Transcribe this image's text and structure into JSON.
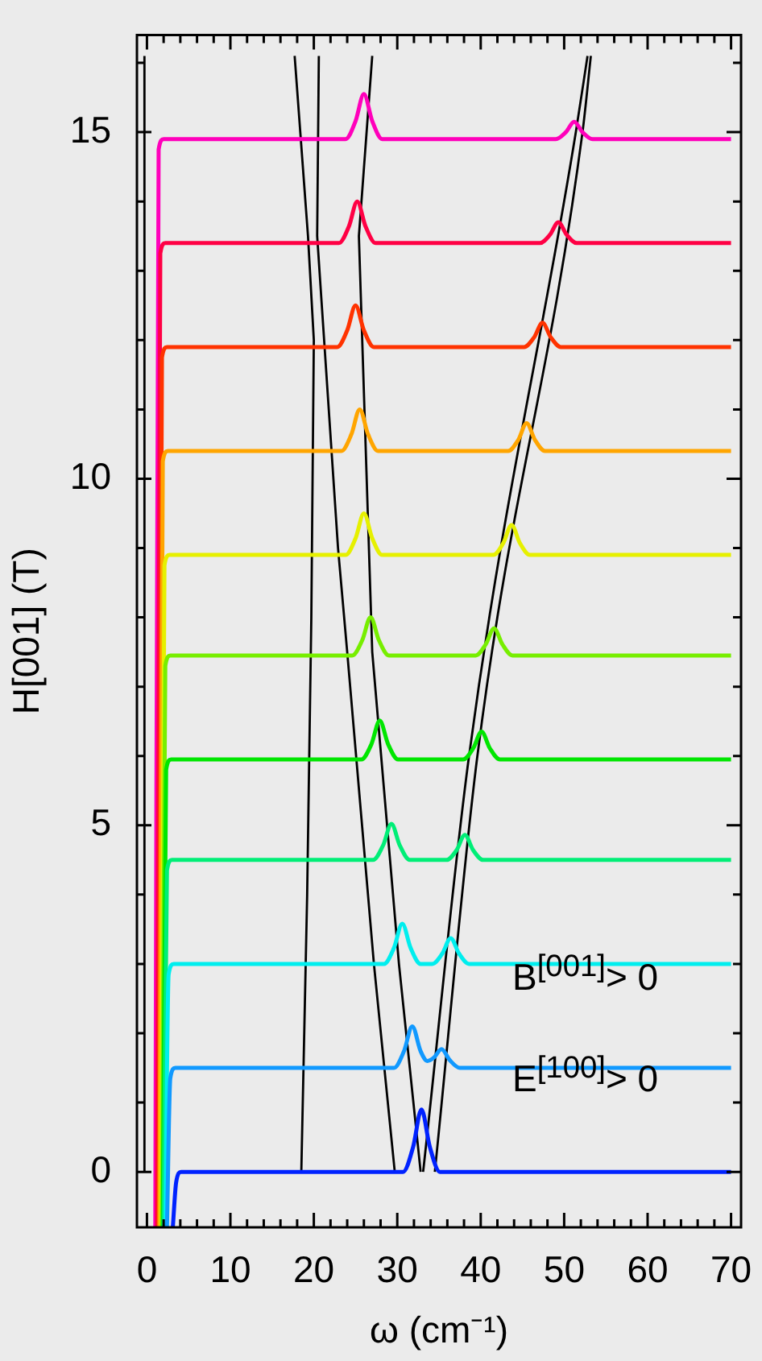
{
  "chart_data": {
    "type": "line",
    "xlabel": "ω (cm⁻¹)",
    "ylabel": "H[001] (T)",
    "annotations": [
      "B$^{[001]}$> 0",
      "E$^{[100]}$> 0"
    ],
    "xlim": [
      -1.2,
      71.2
    ],
    "ylim": [
      -0.8,
      16.4
    ],
    "xticks": [
      0,
      {
        "value": 2,
        "label": null
      },
      {
        "value": 4,
        "label": null
      },
      {
        "value": 6,
        "label": null
      },
      {
        "value": 8,
        "label": null
      },
      10,
      {
        "value": 12,
        "label": null
      },
      {
        "value": 14,
        "label": null
      },
      {
        "value": 16,
        "label": null
      },
      {
        "value": 18,
        "label": null
      },
      20,
      {
        "value": 22,
        "label": null
      },
      {
        "value": 24,
        "label": null
      },
      {
        "value": 26,
        "label": null
      },
      {
        "value": 28,
        "label": null
      },
      30,
      {
        "value": 32,
        "label": null
      },
      {
        "value": 34,
        "label": null
      },
      {
        "value": 36,
        "label": null
      },
      {
        "value": 38,
        "label": null
      },
      40,
      {
        "value": 42,
        "label": null
      },
      {
        "value": 44,
        "label": null
      },
      {
        "value": 46,
        "label": null
      },
      {
        "value": 48,
        "label": null
      },
      50,
      {
        "value": 52,
        "label": null
      },
      {
        "value": 54,
        "label": null
      },
      {
        "value": 56,
        "label": null
      },
      {
        "value": 58,
        "label": null
      },
      60,
      {
        "value": 62,
        "label": null
      },
      {
        "value": 64,
        "label": null
      },
      {
        "value": 66,
        "label": null
      },
      {
        "value": 68,
        "label": null
      },
      70
    ],
    "yticks": [
      0,
      {
        "value": 1,
        "label": null
      },
      {
        "value": 2,
        "label": null
      },
      {
        "value": 3,
        "label": null
      },
      {
        "value": 4,
        "label": null
      },
      5,
      {
        "value": 6,
        "label": null
      },
      {
        "value": 7,
        "label": null
      },
      {
        "value": 8,
        "label": null
      },
      {
        "value": 9,
        "label": null
      },
      10,
      {
        "value": 11,
        "label": null
      },
      {
        "value": 12,
        "label": null
      },
      {
        "value": 13,
        "label": null
      },
      {
        "value": 14,
        "label": null
      },
      15,
      {
        "value": 16,
        "label": null
      }
    ],
    "grid": false,
    "marker": "none",
    "line_style": "solid",
    "series": [
      {
        "color": "#0022ff",
        "x": [
          3.1,
          3.5,
          4.1,
          30.7,
          31.9,
          32.9,
          33.9,
          35.1,
          70
        ],
        "values": [
          -0.8,
          -0.15,
          0,
          0,
          0.36,
          0.9,
          0.36,
          0,
          0
        ]
      },
      {
        "color": "#1199ff",
        "x": [
          2.4,
          2.8,
          3.4,
          29.6,
          30.8,
          31.8,
          32.8,
          33.6,
          34.4,
          35.3,
          36.3,
          37.5,
          70
        ],
        "values": [
          -0.8,
          1.35,
          1.5,
          1.5,
          1.74,
          2.1,
          1.74,
          1.6,
          1.65,
          1.77,
          1.61,
          1.5,
          1.5
        ]
      },
      {
        "color": "#00eeee",
        "x": [
          2.2,
          2.6,
          3.2,
          28.4,
          29.6,
          30.6,
          31.6,
          32.8,
          34.2,
          35.4,
          36.4,
          37.4,
          38.6,
          70
        ],
        "values": [
          -0.8,
          2.85,
          3,
          3,
          3.23,
          3.58,
          3.23,
          3,
          3,
          3.15,
          3.37,
          3.15,
          3,
          3
        ]
      },
      {
        "color": "#00ee77",
        "x": [
          2.0,
          2.4,
          3.0,
          27.1,
          28.3,
          29.3,
          30.3,
          31.5,
          35.9,
          37.1,
          38.1,
          39.1,
          40.3,
          70
        ],
        "values": [
          -0.8,
          4.35,
          4.5,
          4.5,
          4.71,
          5.02,
          4.71,
          4.5,
          4.5,
          4.64,
          4.86,
          4.64,
          4.5,
          4.5
        ]
      },
      {
        "color": "#00e600",
        "x": [
          1.9,
          2.3,
          2.9,
          25.7,
          26.9,
          27.9,
          28.9,
          30.1,
          37.9,
          39.1,
          40.1,
          41.1,
          42.3,
          70
        ],
        "values": [
          -0.8,
          5.8,
          5.95,
          5.95,
          6.17,
          6.51,
          6.17,
          5.95,
          5.95,
          6.11,
          6.35,
          6.11,
          5.95,
          5.95
        ]
      },
      {
        "color": "#77ee00",
        "x": [
          1.8,
          2.2,
          2.8,
          24.6,
          25.8,
          26.8,
          27.8,
          29.0,
          39.4,
          40.6,
          41.6,
          42.6,
          43.8,
          70
        ],
        "values": [
          -0.8,
          7.3,
          7.45,
          7.45,
          7.67,
          8.0,
          7.67,
          7.45,
          7.45,
          7.61,
          7.84,
          7.61,
          7.45,
          7.45
        ]
      },
      {
        "color": "#e6f000",
        "x": [
          1.7,
          2.1,
          2.7,
          23.8,
          25.0,
          26.0,
          27.0,
          28.2,
          41.5,
          42.7,
          43.7,
          44.7,
          45.9,
          70
        ],
        "values": [
          -0.8,
          8.75,
          8.9,
          8.9,
          9.14,
          9.5,
          9.14,
          8.9,
          8.9,
          9.07,
          9.33,
          9.07,
          8.9,
          8.9
        ]
      },
      {
        "color": "#ffa500",
        "x": [
          1.5,
          1.9,
          2.5,
          23.3,
          24.5,
          25.5,
          26.5,
          27.7,
          43.3,
          44.5,
          45.5,
          46.5,
          47.7,
          70
        ],
        "values": [
          -0.8,
          10.25,
          10.4,
          10.4,
          10.64,
          11.0,
          10.64,
          10.4,
          10.4,
          10.56,
          10.8,
          10.56,
          10.4,
          10.4
        ]
      },
      {
        "color": "#ff3300",
        "x": [
          1.4,
          1.8,
          2.4,
          22.8,
          24.0,
          25.0,
          26.0,
          27.2,
          45.2,
          46.4,
          47.4,
          48.4,
          49.6,
          70
        ],
        "values": [
          -0.8,
          11.75,
          11.9,
          11.9,
          12.14,
          12.5,
          12.14,
          11.9,
          11.9,
          12.04,
          12.25,
          12.04,
          11.9,
          11.9
        ]
      },
      {
        "color": "#ff0044",
        "x": [
          1.2,
          1.6,
          2.2,
          23.0,
          24.2,
          25.2,
          26.2,
          27.4,
          47.1,
          48.3,
          49.3,
          50.3,
          51.5,
          70
        ],
        "values": [
          -0.8,
          13.25,
          13.4,
          13.4,
          13.64,
          14.0,
          13.64,
          13.4,
          13.4,
          13.52,
          13.7,
          13.52,
          13.4,
          13.4
        ]
      },
      {
        "color": "#ff00bb",
        "x": [
          1.0,
          1.4,
          2.0,
          23.8,
          25.0,
          26.0,
          27.0,
          28.2,
          49.0,
          50.2,
          51.2,
          52.2,
          53.4,
          70
        ],
        "values": [
          -0.8,
          14.75,
          14.9,
          14.9,
          15.16,
          15.55,
          15.16,
          14.9,
          14.9,
          15.0,
          15.15,
          15.0,
          14.9,
          14.9
        ]
      },
      {
        "color": "#000000",
        "x": [
          -0.3,
          -0.3
        ],
        "values": [
          0,
          16.1
        ]
      },
      {
        "color": "#000000",
        "x": [
          18.5,
          19.2,
          19.7,
          20.0,
          19.3,
          17.7
        ],
        "values": [
          0,
          4,
          8,
          12,
          13.5,
          16.1
        ]
      },
      {
        "color": "#000000",
        "x": [
          29.7,
          27.2,
          24.0,
          22.9,
          20.4,
          20.6
        ],
        "values": [
          0,
          3,
          7.5,
          9,
          13.5,
          16.1
        ]
      },
      {
        "color": "#000000",
        "x": [
          32.8,
          30.2,
          27.0,
          25.4,
          27.0
        ],
        "values": [
          0,
          3,
          7.5,
          13.5,
          16.1
        ]
      },
      {
        "color": "#000000",
        "x": [
          33.1,
          38.6,
          51.4,
          52.8
        ],
        "values": [
          0,
          6,
          15,
          16.1
        ]
      },
      {
        "color": "#000000",
        "x": [
          34.5,
          39.6,
          52.2,
          53.2
        ],
        "values": [
          0,
          6,
          15,
          16.1
        ]
      }
    ]
  }
}
